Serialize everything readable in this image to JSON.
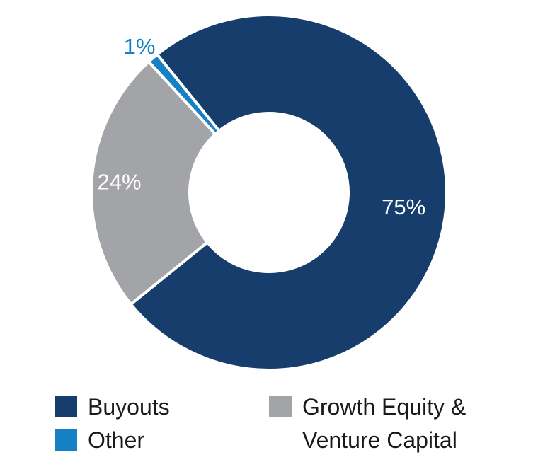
{
  "chart_data": {
    "type": "pie",
    "variant": "donut",
    "title": "",
    "categories": [
      "Buyouts",
      "Growth Equity & Venture Capital",
      "Other"
    ],
    "values": [
      75,
      24,
      1
    ],
    "unit": "%",
    "colors": {
      "Buyouts": "#173d6d",
      "Growth Equity & Venture Capital": "#a3a4a7",
      "Other": "#1580c4"
    },
    "data_labels": [
      "75%",
      "24%",
      "1%"
    ],
    "legend": {
      "placement": "bottom",
      "entries": [
        {
          "color": "#173d6d",
          "lines": [
            "Buyouts"
          ]
        },
        {
          "color": "#1580c4",
          "lines": [
            "Other"
          ]
        },
        {
          "color": "#a3a4a7",
          "lines": [
            "Growth Equity &",
            "Venture Capital"
          ]
        }
      ]
    }
  }
}
